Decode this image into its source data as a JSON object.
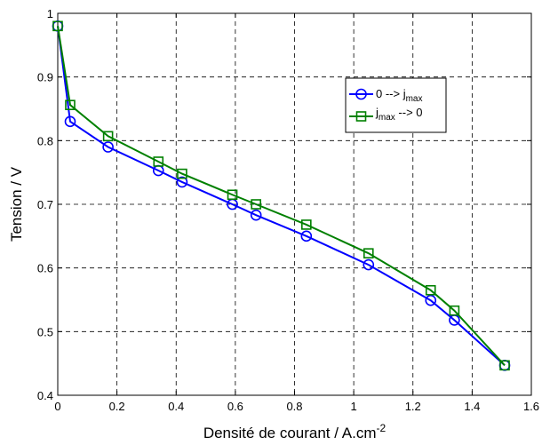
{
  "chart_data": {
    "type": "line",
    "xlabel": "Densité de courant / A.cm",
    "xlabel_superscript": "-2",
    "ylabel": "Tension / V",
    "xlim": [
      0,
      1.6
    ],
    "ylim": [
      0.4,
      1.0
    ],
    "xticks": [
      "0",
      "0.2",
      "0.4",
      "0.6",
      "0.8",
      "1",
      "1.2",
      "1.4",
      "1.6"
    ],
    "yticks": [
      "0.4",
      "0.5",
      "0.6",
      "0.7",
      "0.8",
      "0.9",
      "1"
    ],
    "grid": true,
    "legend_position": "upper-right",
    "series": [
      {
        "name": "0 --> j",
        "name_subscript": "max",
        "color": "#0000ff",
        "marker": "circle",
        "x": [
          0.0,
          0.042,
          0.17,
          0.34,
          0.42,
          0.59,
          0.67,
          0.84,
          1.05,
          1.26,
          1.34,
          1.51
        ],
        "y": [
          0.98,
          0.83,
          0.79,
          0.753,
          0.735,
          0.7,
          0.683,
          0.65,
          0.605,
          0.549,
          0.518,
          0.447
        ]
      },
      {
        "name": "j",
        "name_subscript": "max",
        "name_suffix": " --> 0",
        "color": "#008000",
        "marker": "square",
        "x": [
          0.0,
          0.042,
          0.17,
          0.34,
          0.42,
          0.59,
          0.67,
          0.84,
          1.05,
          1.26,
          1.34,
          1.51
        ],
        "y": [
          0.98,
          0.856,
          0.807,
          0.767,
          0.748,
          0.715,
          0.7,
          0.668,
          0.623,
          0.565,
          0.533,
          0.447
        ]
      }
    ]
  }
}
